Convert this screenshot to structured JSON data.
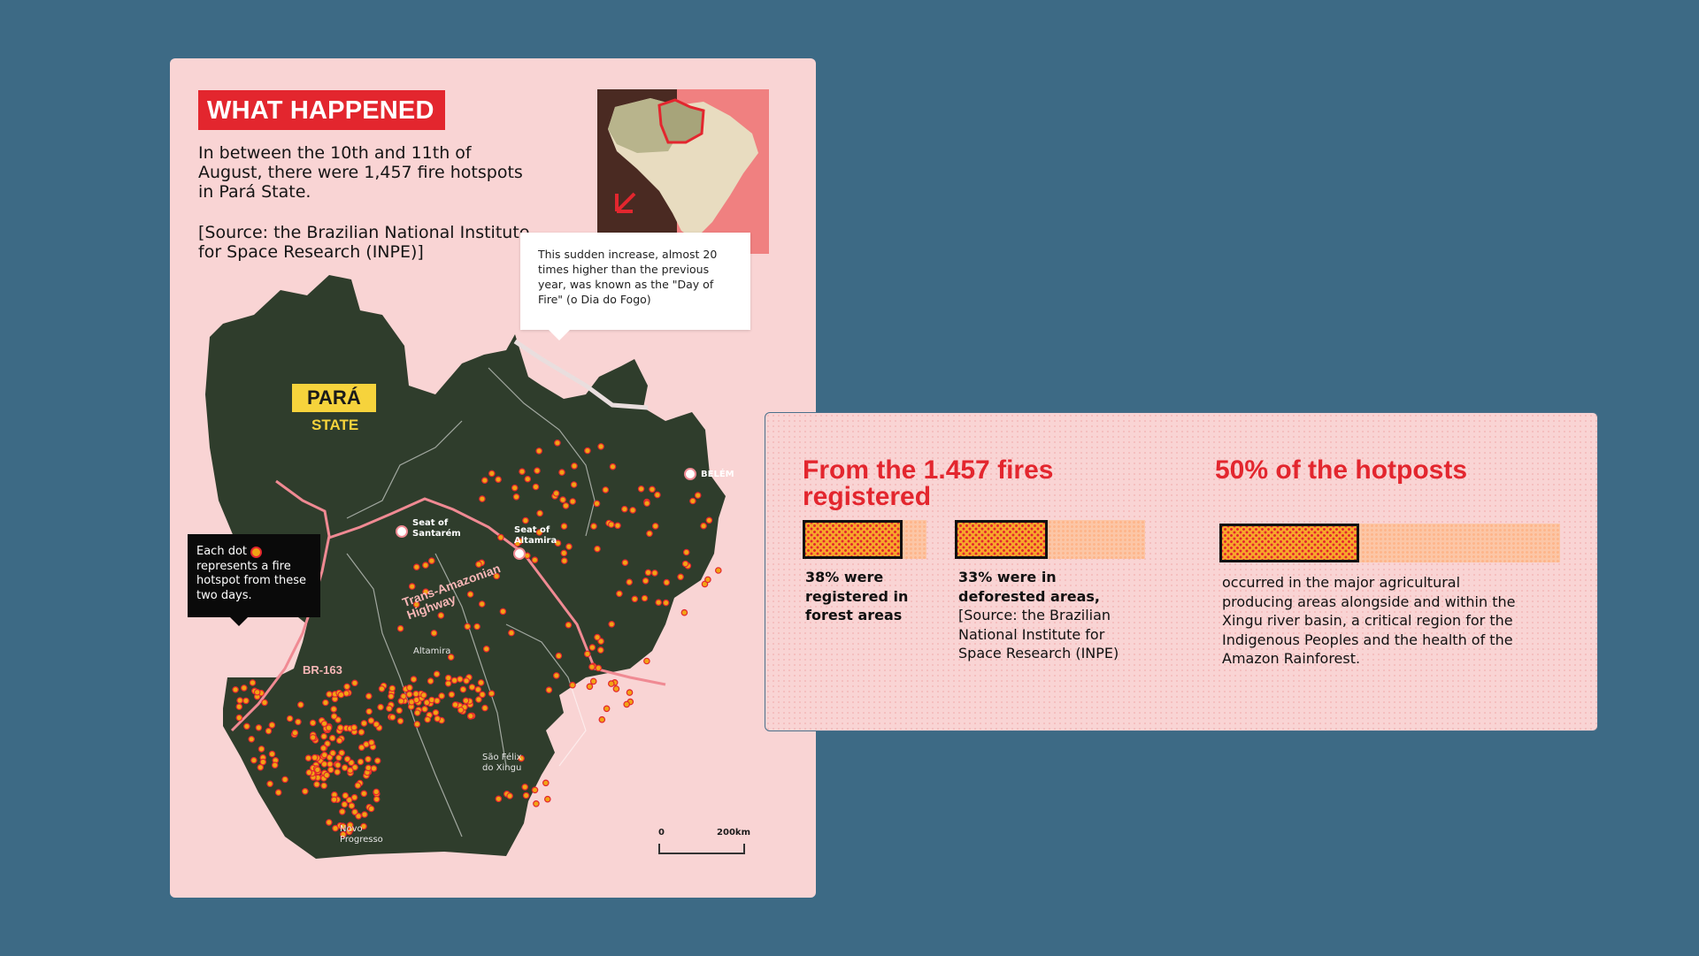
{
  "left_panel": {
    "title": "WHAT HAPPENED",
    "intro": "In between  the 10th and 11th of August, there were 1,457 fire hotspots in Pará State.",
    "source": "[Source: the Brazilian National Institute for Space Research (INPE)]",
    "callout_white": "This sudden increase, almost 20 times higher than the previous year, was known as the \"Day of Fire\" (o Dia do Fogo)",
    "callout_black": "Each dot represents a fire hotspot from these two days.",
    "state_name": "PARÁ",
    "state_sub": "STATE",
    "places": {
      "belem": "BELÉM",
      "santarem": "Seat of Santarém",
      "altamira_seat": "Seat of Altamira",
      "altamira": "Altamira",
      "sao_felix": "São Félix do Xingu",
      "novo_progresso": "Novo Progresso"
    },
    "roads": {
      "trans_amazonian": "Trans-Amazonian Highway",
      "br163": "BR-163"
    },
    "scale": {
      "start": "0",
      "end": "200km"
    }
  },
  "right_panel": {
    "block1": {
      "heading": "From the 1.457 fires registered",
      "stats": [
        {
          "percent": 38,
          "bold": "38% were registered in forest areas",
          "rest": ""
        },
        {
          "percent": 33,
          "bold": "33% were in deforested areas,",
          "rest": "[Source: the Brazilian National Institute for Space Research (INPE)"
        }
      ]
    },
    "block2": {
      "heading": "50% of the hotposts",
      "percent": 50,
      "text": "occurred in the major agricultural producing areas alongside and within the Xingu river basin, a critical region for the Indigenous Peoples and the health of the Amazon Rainforest."
    }
  },
  "colors": {
    "background": "#3d6a85",
    "panel": "#f9d4d4",
    "accent_red": "#e3262e",
    "badge_yellow": "#f6d33c",
    "hotspot_orange": "#f1a314",
    "forest": "#2f3d2c"
  }
}
